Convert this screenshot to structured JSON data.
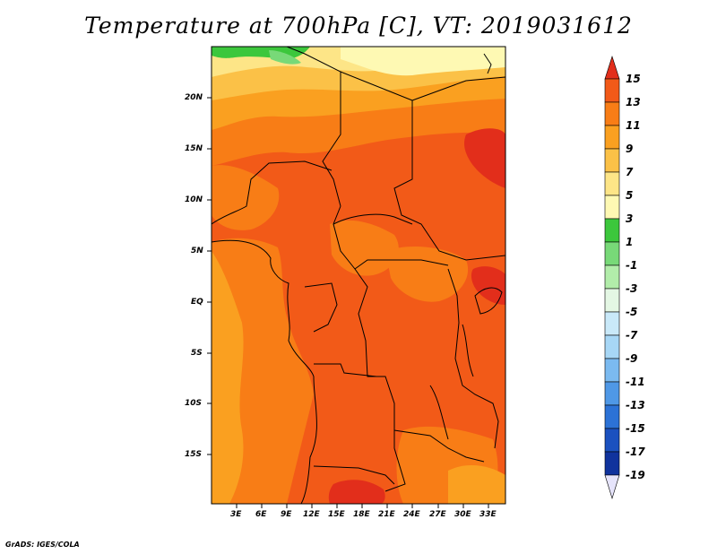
{
  "title": "Temperature at 700hPa [C], VT: 2019031612",
  "credit": "GrADS: IGES/COLA",
  "map": {
    "variable": "Temperature",
    "level": "700hPa",
    "units": "C",
    "valid_time": "2019031612",
    "lat_labels": [
      "20N",
      "15N",
      "10N",
      "5N",
      "EQ",
      "5S",
      "10S",
      "15S"
    ],
    "lon_labels": [
      "3E",
      "6E",
      "9E",
      "12E",
      "15E",
      "18E",
      "21E",
      "24E",
      "27E",
      "30E",
      "33E"
    ]
  },
  "colorbar": {
    "labels": [
      "15",
      "13",
      "11",
      "9",
      "7",
      "5",
      "3",
      "1",
      "-1",
      "-3",
      "-5",
      "-7",
      "-9",
      "-11",
      "-13",
      "-15",
      "-17",
      "-19"
    ],
    "colors": [
      "#e22e1b",
      "#f25a18",
      "#f87d16",
      "#faa020",
      "#fbc147",
      "#fde587",
      "#fef9b3",
      "#3cc73c",
      "#78d978",
      "#b2edaa",
      "#e4f7e4",
      "#c9e9f9",
      "#a7d7f6",
      "#7bbaf0",
      "#4f98e6",
      "#2c72d6",
      "#1b51bf",
      "#10339d",
      "#09137a",
      "#e6e4fb"
    ]
  }
}
